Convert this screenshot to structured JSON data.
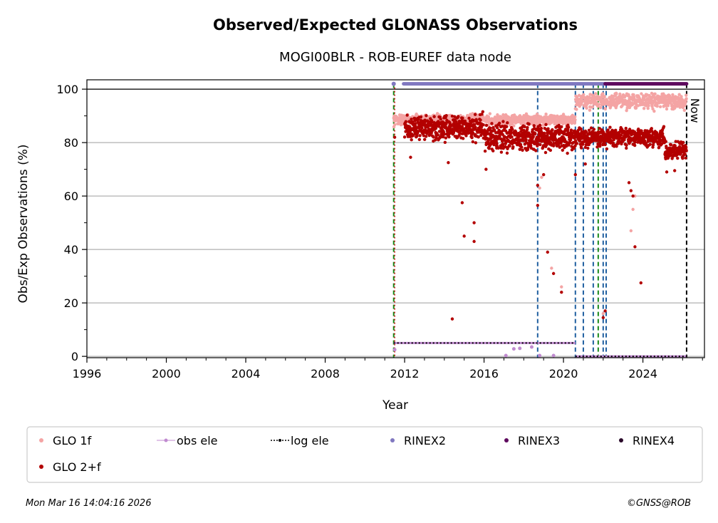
{
  "chart_data": {
    "type": "scatter",
    "title": "Observed/Expected GLONASS Observations",
    "subtitle": "MOGI00BLR - ROB-EUREF data node",
    "xlabel": "Year",
    "ylabel": "Obs/Exp Observations (%)",
    "xlim": [
      1996,
      2027.1
    ],
    "ylim": [
      -0.5,
      103.5
    ],
    "x_ticks": [
      1996,
      2000,
      2004,
      2008,
      2012,
      2016,
      2020,
      2024
    ],
    "y_ticks": [
      0,
      20,
      40,
      60,
      80,
      100
    ],
    "grid": "y",
    "now_label": "Now",
    "now_x": 2026.2,
    "legend_position": "bottom",
    "colors": {
      "glo1f": "#f4a4a4",
      "glo2f": "#b30000",
      "obs_ele": "#c08ad0",
      "log_ele": "#000000",
      "rinex2": "#8078c0",
      "rinex3": "#5e0a5e",
      "rinex4": "#2a0a2a",
      "blue_lines": "#1f5fa0",
      "green_lines": "#1a8a1a",
      "now_line": "#000000"
    },
    "series": [
      {
        "name": "GLO 1f",
        "key": "glo1f",
        "style": "dot"
      },
      {
        "name": "GLO 2+f",
        "key": "glo2f",
        "style": "dot"
      },
      {
        "name": "obs ele",
        "key": "obs_ele",
        "style": "line-dot"
      },
      {
        "name": "log ele",
        "key": "log_ele",
        "style": "dotted-line-dot"
      },
      {
        "name": "RINEX2",
        "key": "rinex2",
        "style": "dot"
      },
      {
        "name": "RINEX3",
        "key": "rinex3",
        "style": "dot"
      },
      {
        "name": "RINEX4",
        "key": "rinex4",
        "style": "dot"
      }
    ],
    "glo1f_segments": [
      {
        "x0": 2011.45,
        "x1": 2020.6,
        "y_mean": 88.5,
        "spread": 1.6
      },
      {
        "x0": 2020.6,
        "x1": 2026.2,
        "y_mean": 95.5,
        "spread": 2.5
      }
    ],
    "glo2f_segments": [
      {
        "x0": 2012.0,
        "x1": 2016.0,
        "y_mean": 85.5,
        "spread": 3.8
      },
      {
        "x0": 2016.0,
        "x1": 2020.6,
        "y_mean": 82,
        "spread": 4.0
      },
      {
        "x0": 2020.6,
        "x1": 2025.1,
        "y_mean": 82,
        "spread": 2.8
      },
      {
        "x0": 2025.1,
        "x1": 2026.2,
        "y_mean": 77,
        "spread": 2.5
      }
    ],
    "glo1f_outliers": [
      [
        2011.5,
        90
      ],
      [
        2018.9,
        67
      ],
      [
        2019.4,
        33
      ],
      [
        2019.9,
        26
      ],
      [
        2022.0,
        16
      ],
      [
        2023.4,
        47
      ],
      [
        2023.6,
        60
      ],
      [
        2018.8,
        63
      ],
      [
        2023.5,
        55
      ]
    ],
    "glo2f_outliers": [
      [
        2011.5,
        82
      ],
      [
        2012.3,
        74.5
      ],
      [
        2014.4,
        14
      ],
      [
        2014.2,
        72.5
      ],
      [
        2014.9,
        57.5
      ],
      [
        2015.0,
        45
      ],
      [
        2015.5,
        50
      ],
      [
        2015.5,
        43
      ],
      [
        2016.1,
        70
      ],
      [
        2018.7,
        64
      ],
      [
        2018.7,
        56.5
      ],
      [
        2019.0,
        68
      ],
      [
        2019.2,
        39
      ],
      [
        2019.5,
        31
      ],
      [
        2019.9,
        24
      ],
      [
        2020.2,
        76
      ],
      [
        2020.6,
        68
      ],
      [
        2021.1,
        72
      ],
      [
        2022.0,
        14.5
      ],
      [
        2022.1,
        17
      ],
      [
        2023.3,
        65
      ],
      [
        2023.4,
        62
      ],
      [
        2023.5,
        60
      ],
      [
        2023.6,
        41
      ],
      [
        2023.9,
        27.5
      ],
      [
        2025.2,
        69
      ],
      [
        2025.6,
        69.5
      ]
    ],
    "obs_ele": {
      "segments": [
        {
          "x0": 2011.45,
          "x1": 2020.6,
          "y": 5
        },
        {
          "x0": 2020.6,
          "x1": 2026.2,
          "y": 0.3
        }
      ],
      "drops": [
        [
          2011.5,
          2.5
        ],
        [
          2017.1,
          0.3
        ],
        [
          2017.5,
          2.8
        ],
        [
          2017.8,
          3
        ],
        [
          2018.4,
          3.5
        ],
        [
          2018.8,
          0.3
        ],
        [
          2019.5,
          0.3
        ]
      ]
    },
    "log_ele": {
      "segments": [
        {
          "x0": 2011.45,
          "x1": 2020.6,
          "y": 5
        },
        {
          "x0": 2020.6,
          "x1": 2026.2,
          "y": 0
        }
      ]
    },
    "rinex2": {
      "x0": 2011.45,
      "x1": 2022.1,
      "y": 102,
      "gap": [
        2011.6,
        2011.95
      ]
    },
    "rinex3": {
      "x0": 2022.1,
      "x1": 2026.2,
      "y": 102
    },
    "blue_lines": [
      2018.7,
      2020.6,
      2021.0,
      2021.5,
      2022.0,
      2022.15
    ],
    "green_lines": [
      2011.45,
      2021.75
    ],
    "red_line": 2011.5
  },
  "footer": {
    "timestamp": "Mon Mar 16 14:04:16 2026",
    "copyright": "©GNSS@ROB"
  }
}
